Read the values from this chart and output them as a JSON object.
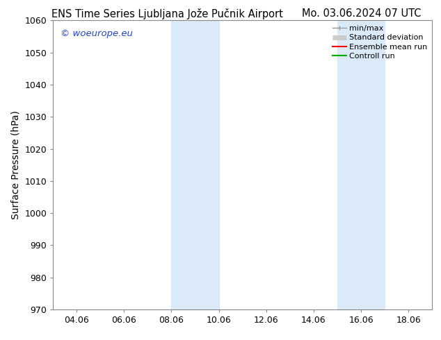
{
  "title_left": "ENS Time Series Ljubljana Jože Pučnik Airport",
  "title_right": "Mo. 03.06.2024 07 UTC",
  "ylabel": "Surface Pressure (hPa)",
  "xlim": [
    3.0,
    19.0
  ],
  "ylim": [
    970,
    1060
  ],
  "yticks": [
    970,
    980,
    990,
    1000,
    1010,
    1020,
    1030,
    1040,
    1050,
    1060
  ],
  "xtick_labels": [
    "04.06",
    "06.06",
    "08.06",
    "10.06",
    "12.06",
    "14.06",
    "16.06",
    "18.06"
  ],
  "xtick_positions": [
    4,
    6,
    8,
    10,
    12,
    14,
    16,
    18
  ],
  "shaded_bands": [
    {
      "xmin": 8.0,
      "xmax": 10.0
    },
    {
      "xmin": 15.0,
      "xmax": 17.0
    }
  ],
  "band_color": "#daeaf8",
  "band_alpha": 1.0,
  "watermark_text": "© woeurope.eu",
  "watermark_color": "#2244cc",
  "watermark_fontsize": 9.5,
  "legend_entries": [
    {
      "label": "min/max",
      "color": "#999999",
      "linewidth": 1.0,
      "linestyle": "-",
      "type": "minmax"
    },
    {
      "label": "Standard deviation",
      "color": "#cccccc",
      "linewidth": 5,
      "linestyle": "-",
      "type": "band"
    },
    {
      "label": "Ensemble mean run",
      "color": "#ff0000",
      "linewidth": 1.5,
      "linestyle": "-",
      "type": "line"
    },
    {
      "label": "Controll run",
      "color": "#00aa00",
      "linewidth": 1.5,
      "linestyle": "-",
      "type": "line"
    }
  ],
  "bg_color": "#ffffff",
  "axes_bg_color": "#ffffff",
  "title_fontsize": 10.5,
  "ylabel_fontsize": 10,
  "tick_fontsize": 9,
  "legend_fontsize": 8
}
